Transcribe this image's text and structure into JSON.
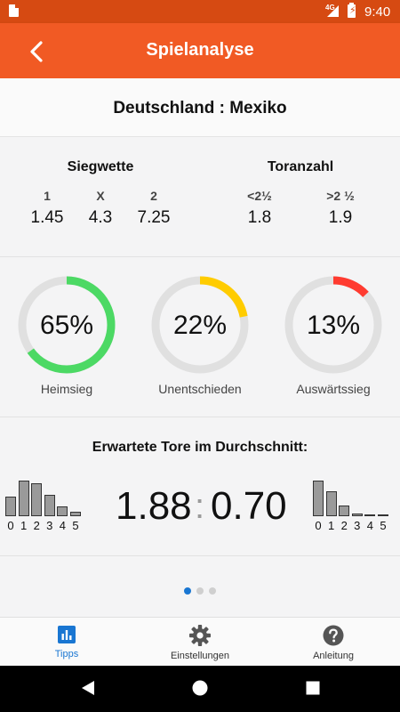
{
  "status_bar": {
    "network": "4G",
    "time": "9:40"
  },
  "app_bar": {
    "title": "Spielanalyse",
    "back_icon": "chevron-left-icon"
  },
  "match": {
    "title": "Deutschland : Mexiko"
  },
  "odds": {
    "siegwette": {
      "title": "Siegwette",
      "items": [
        {
          "label": "1",
          "value": "1.45"
        },
        {
          "label": "X",
          "value": "4.3"
        },
        {
          "label": "2",
          "value": "7.25"
        }
      ]
    },
    "toranzahl": {
      "title": "Toranzahl",
      "items": [
        {
          "label": "<2½",
          "value": "1.8"
        },
        {
          "label": ">2 ½",
          "value": "1.9"
        }
      ]
    }
  },
  "probabilities": [
    {
      "percent_text": "65%",
      "value": 65,
      "label": "Heimsieg",
      "color": "#4cd964"
    },
    {
      "percent_text": "22%",
      "value": 22,
      "label": "Unentschieden",
      "color": "#ffcc00"
    },
    {
      "percent_text": "13%",
      "value": 13,
      "label": "Auswärtssieg",
      "color": "#ff3b30"
    }
  ],
  "expected_goals": {
    "title": "Erwartete Tore im Durchschnitt:",
    "home": "1.88",
    "separator": ":",
    "away": "0.70",
    "tick_labels": [
      "0",
      "1",
      "2",
      "3",
      "4",
      "5"
    ],
    "home_distribution": [
      0.55,
      1.0,
      0.92,
      0.6,
      0.28,
      0.12
    ],
    "away_distribution": [
      1.0,
      0.7,
      0.3,
      0.08,
      0.03,
      0.02
    ]
  },
  "pager": {
    "count": 3,
    "active": 0
  },
  "bottom_nav": [
    {
      "label": "Tipps",
      "icon": "bar-chart-icon",
      "active": true
    },
    {
      "label": "Einstellungen",
      "icon": "gear-icon",
      "active": false
    },
    {
      "label": "Anleitung",
      "icon": "help-circle-icon",
      "active": false
    }
  ],
  "system_nav": {
    "icons": [
      "back-triangle-icon",
      "home-circle-icon",
      "recents-square-icon"
    ]
  }
}
